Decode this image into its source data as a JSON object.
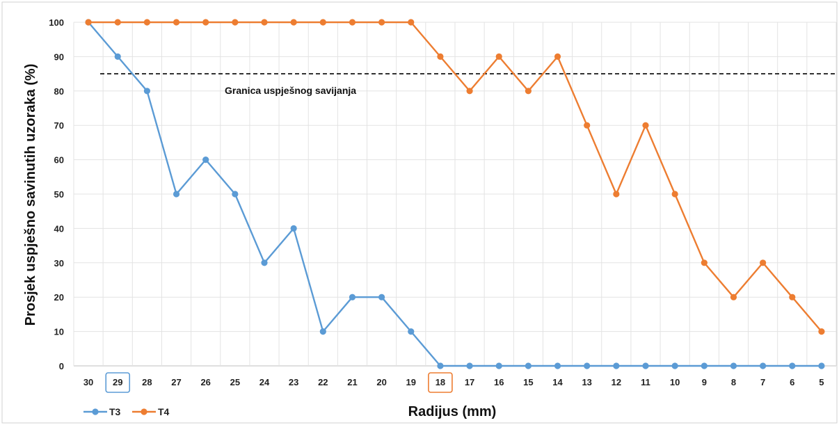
{
  "chart_data": {
    "type": "line",
    "title": "",
    "xlabel": "Radijus (mm)",
    "ylabel": "Prosjek  uspješno savinutih uzoraka (%)",
    "ylim": [
      0,
      100
    ],
    "yticks": [
      0,
      10,
      20,
      30,
      40,
      50,
      60,
      70,
      80,
      90,
      100
    ],
    "categories": [
      "30",
      "29",
      "28",
      "27",
      "26",
      "25",
      "24",
      "23",
      "22",
      "21",
      "20",
      "19",
      "18",
      "17",
      "16",
      "15",
      "14",
      "13",
      "12",
      "11",
      "10",
      "9",
      "8",
      "7",
      "6",
      "5"
    ],
    "grid": true,
    "legend_position": "bottom-left",
    "series": [
      {
        "name": "T3",
        "color": "#5b9bd5",
        "values": [
          100,
          90,
          80,
          50,
          60,
          50,
          30,
          40,
          10,
          20,
          20,
          10,
          0,
          0,
          0,
          0,
          0,
          0,
          0,
          0,
          0,
          0,
          0,
          0,
          0,
          0
        ]
      },
      {
        "name": "T4",
        "color": "#ed7d31",
        "values": [
          100,
          100,
          100,
          100,
          100,
          100,
          100,
          100,
          100,
          100,
          100,
          100,
          90,
          80,
          90,
          80,
          90,
          70,
          50,
          70,
          50,
          30,
          20,
          30,
          20,
          10
        ]
      }
    ],
    "threshold": {
      "label": "Granica uspješnog savijanja",
      "value": 85,
      "style": "dashed"
    },
    "highlighted_categories": [
      {
        "category": "29",
        "color": "#5b9bd5"
      },
      {
        "category": "18",
        "color": "#ed7d31"
      }
    ]
  }
}
